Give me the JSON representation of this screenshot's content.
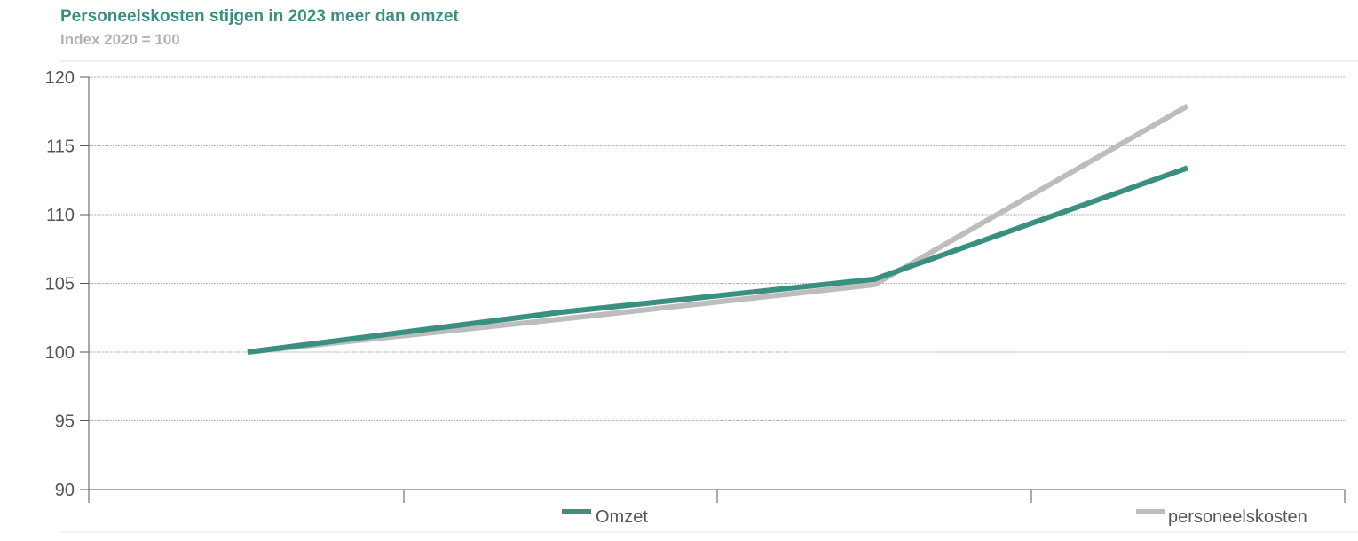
{
  "chart_data": {
    "type": "line",
    "title": "Personeelskosten stijgen in 2023 meer dan omzet",
    "subtitle": "Index 2020 = 100",
    "xlabel": "",
    "ylabel": "",
    "x": [
      0,
      1,
      2,
      3
    ],
    "x_tick_labels": [],
    "ylim": [
      90,
      120
    ],
    "yticks": [
      90,
      95,
      100,
      105,
      110,
      115,
      120
    ],
    "grid": true,
    "legend_placement": "bottom",
    "series": [
      {
        "name": "Omzet",
        "color": "#3b8f81",
        "values": [
          100,
          102.9,
          105.3,
          113.4
        ]
      },
      {
        "name": "personeelskosten",
        "color": "#bdbdbd",
        "values": [
          100,
          102.4,
          104.9,
          117.9
        ]
      }
    ]
  }
}
